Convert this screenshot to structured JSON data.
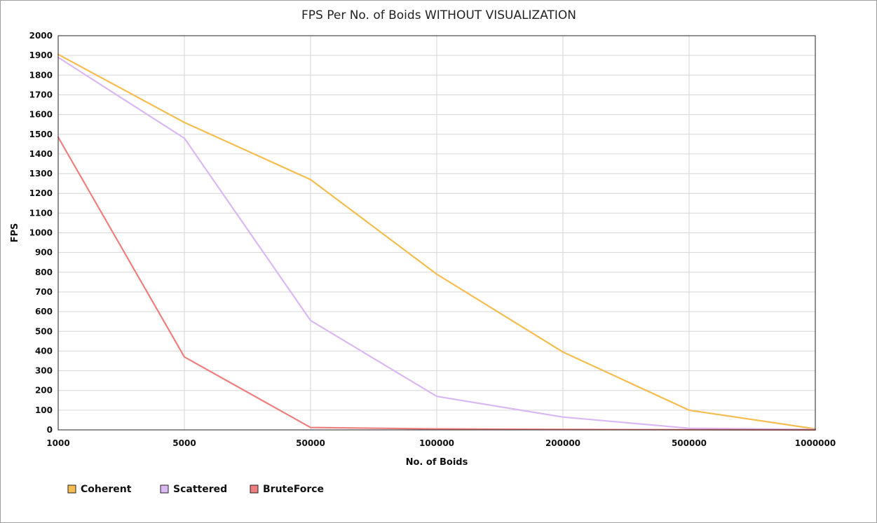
{
  "chart_data": {
    "type": "line",
    "title": "FPS Per No. of Boids WITHOUT VISUALIZATION",
    "xlabel": "No. of Boids",
    "ylabel": "FPS",
    "categories": [
      "1000",
      "5000",
      "50000",
      "100000",
      "200000",
      "500000",
      "1000000"
    ],
    "ylim": [
      0,
      2000
    ],
    "yticks": [
      "0",
      "100",
      "200",
      "300",
      "400",
      "500",
      "600",
      "700",
      "800",
      "900",
      "1000",
      "1100",
      "1200",
      "1300",
      "1400",
      "1500",
      "1600",
      "1700",
      "1800",
      "1900",
      "2000"
    ],
    "grid": true,
    "legend_position": "bottom-left",
    "series": [
      {
        "name": "Coherent",
        "color": "#f5bd4f",
        "values": [
          1905,
          1560,
          1270,
          790,
          395,
          100,
          5
        ]
      },
      {
        "name": "Scattered",
        "color": "#d9b8f3",
        "values": [
          1890,
          1480,
          555,
          170,
          65,
          8,
          2
        ]
      },
      {
        "name": "BruteForce",
        "color": "#ee7f7f",
        "values": [
          1485,
          370,
          12,
          5,
          2,
          1,
          0
        ]
      }
    ]
  }
}
